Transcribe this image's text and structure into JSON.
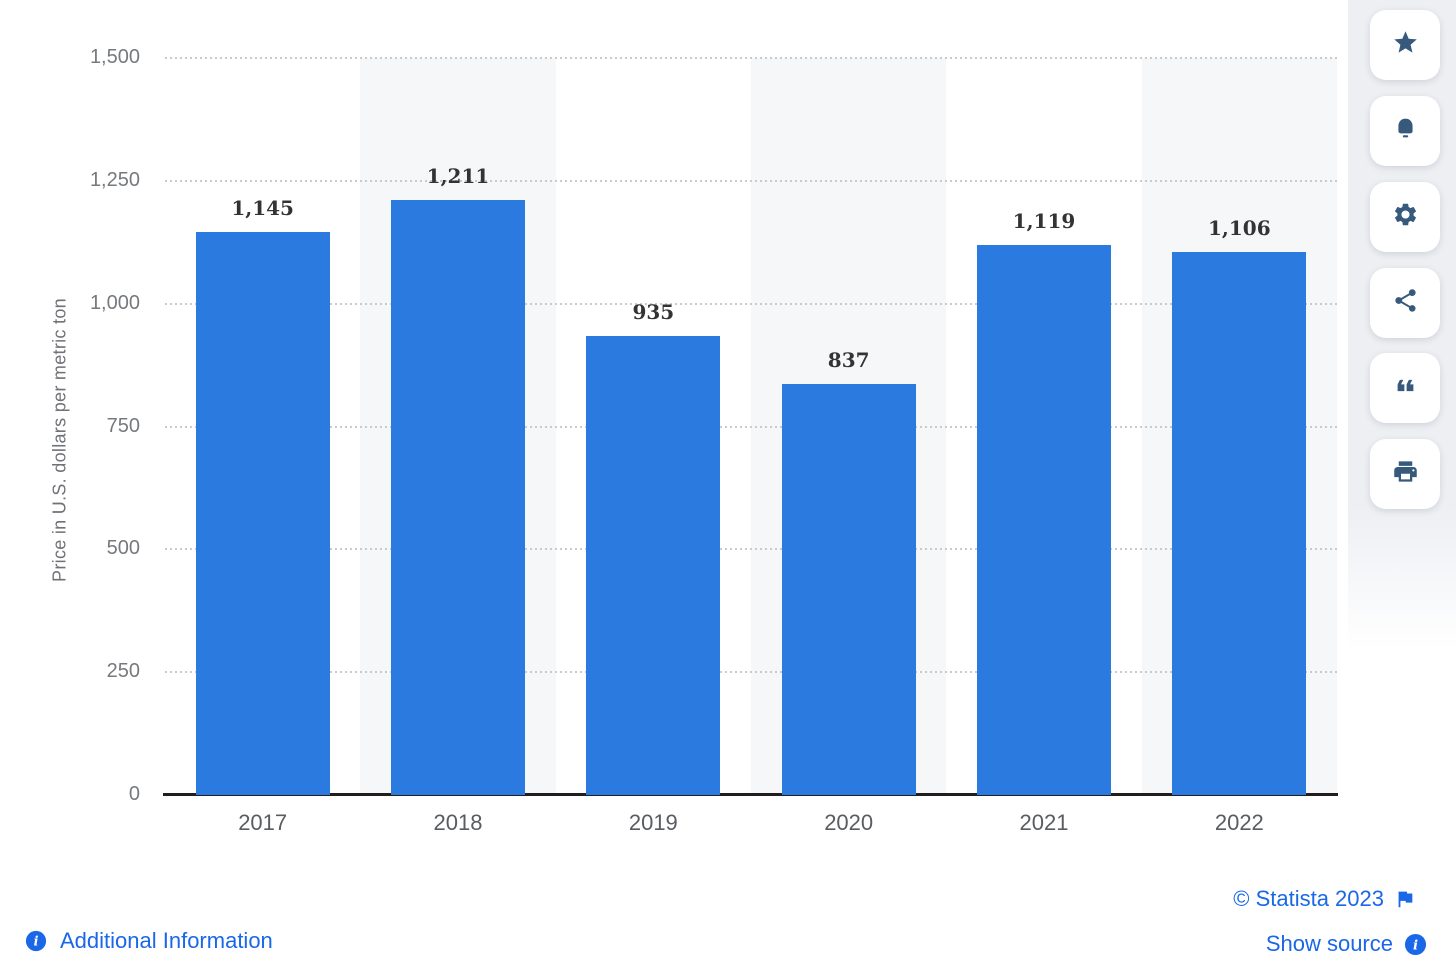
{
  "chart_data": {
    "type": "bar",
    "title": "",
    "categories": [
      "2017",
      "2018",
      "2019",
      "2020",
      "2021",
      "2022"
    ],
    "values": [
      1145,
      1211,
      935,
      837,
      1119,
      1106
    ],
    "value_labels": [
      "1,145",
      "1,211",
      "935",
      "837",
      "1,119",
      "1,106"
    ],
    "xlabel": "",
    "ylabel": "Price in U.S. dollars per metric ton",
    "ylim": [
      0,
      1500
    ],
    "ytick_values": [
      0,
      250,
      500,
      750,
      1000,
      1250,
      1500
    ],
    "ytick_labels": [
      "0",
      "250",
      "500",
      "750",
      "1,000",
      "1,250",
      "1,500"
    ],
    "grid": "horizontal-dotted",
    "legend": "none",
    "banded_columns": [
      1,
      3,
      5
    ],
    "bar_color": "#2b7ae0",
    "band_color": "#f6f7f9"
  },
  "toolbar": {
    "buttons": [
      {
        "name": "favorite",
        "icon": "star-icon"
      },
      {
        "name": "notifications",
        "icon": "bell-icon"
      },
      {
        "name": "settings",
        "icon": "gear-icon"
      },
      {
        "name": "share",
        "icon": "share-icon"
      },
      {
        "name": "cite",
        "icon": "quote-icon"
      },
      {
        "name": "print",
        "icon": "printer-icon"
      }
    ]
  },
  "footer": {
    "additional_information": "Additional Information",
    "copyright": "© Statista 2023",
    "show_source": "Show source"
  },
  "colors": {
    "link_blue": "#1a67e8",
    "icon_navy": "#36597c",
    "bar_blue": "#2b7ae0",
    "band_gray": "#f6f7f9",
    "sidebar_gray": "#edeff3",
    "value_label": "#333333",
    "ytick_gray": "#76797d",
    "xtick_gray": "#595c60",
    "axis_line": "#1f1f1f",
    "gridline": "#c9cacc"
  }
}
